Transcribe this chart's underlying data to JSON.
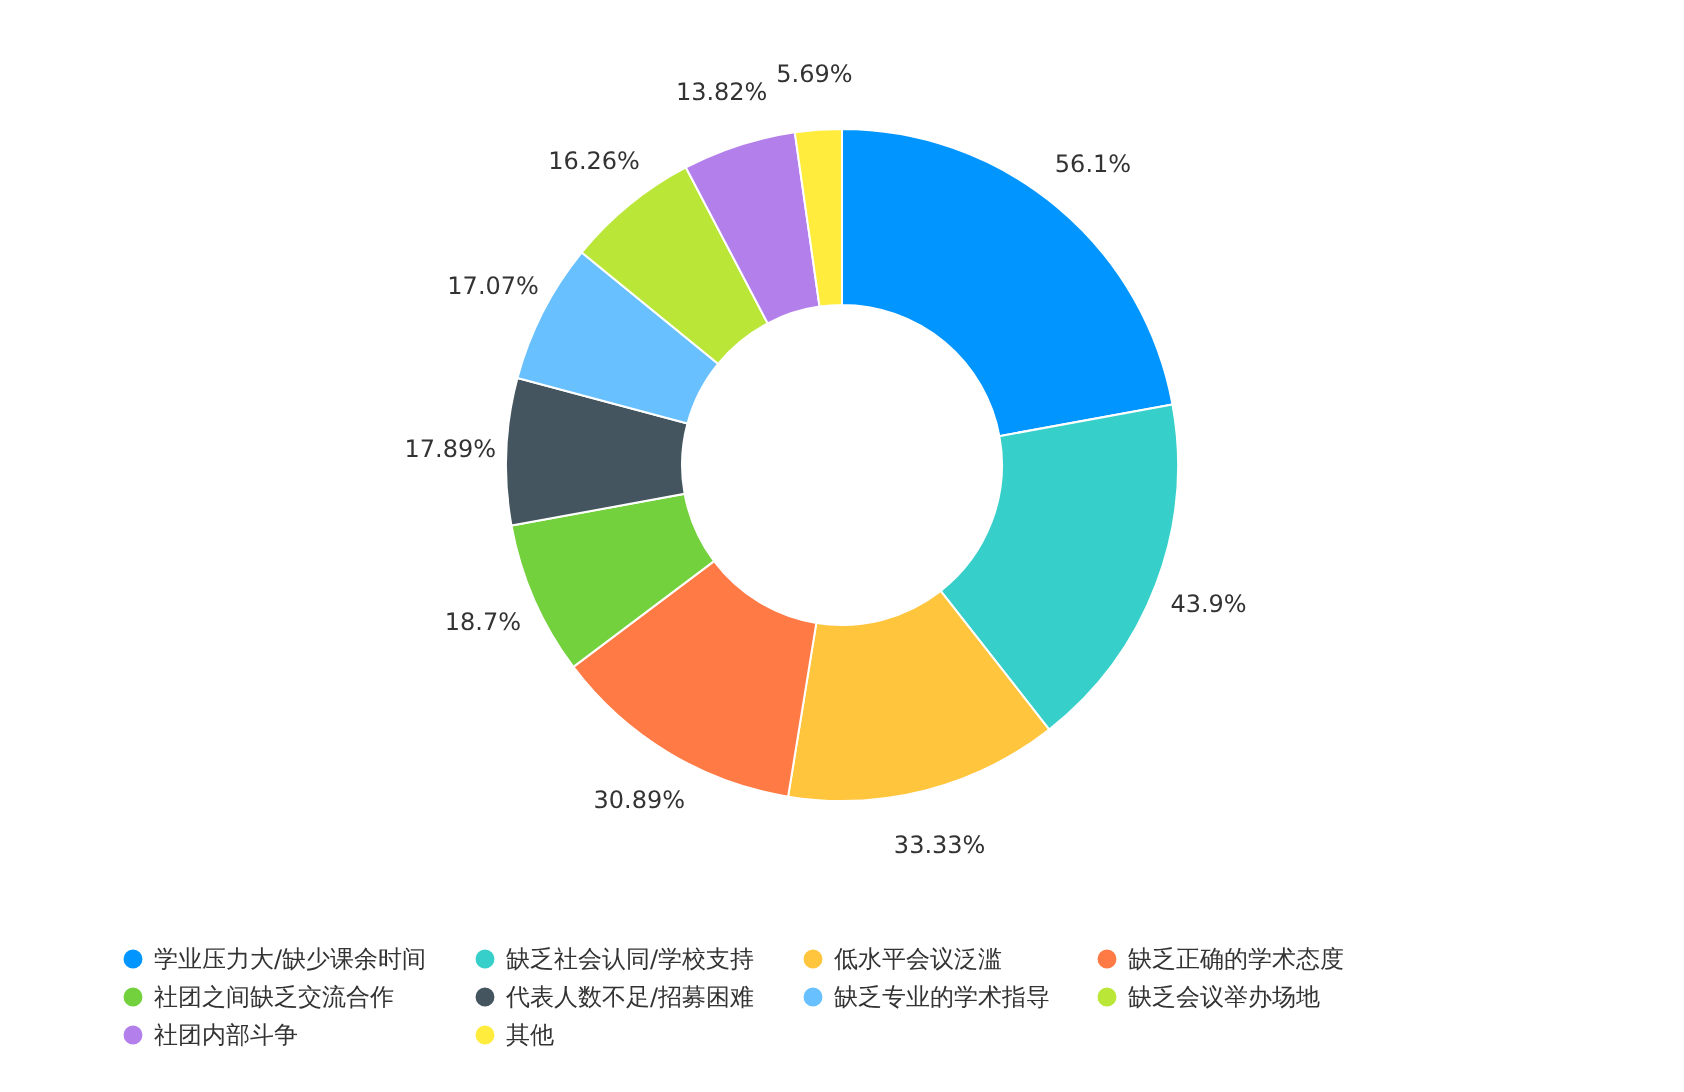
{
  "chart_data": {
    "type": "donut",
    "categories": [
      "学业压力大/缺少课余时间",
      "缺乏社会认同/学校支持",
      "低水平会议泛滥",
      "缺乏正确的学术态度",
      "社团之间缺乏交流合作",
      "代表人数不足/招募困难",
      "缺乏专业的学术指导",
      "缺乏会议举办场地",
      "社团内部斗争",
      "其他"
    ],
    "values": [
      56.1,
      43.9,
      33.33,
      30.89,
      18.7,
      17.89,
      17.07,
      16.26,
      13.82,
      5.69
    ],
    "value_labels": [
      "56.1%",
      "43.9%",
      "33.33%",
      "30.89%",
      "18.7%",
      "17.89%",
      "17.07%",
      "16.26%",
      "13.82%",
      "5.69%"
    ],
    "colors": [
      "#0095ff",
      "#36cfc9",
      "#ffc53d",
      "#ff7a45",
      "#73d13d",
      "#44555f",
      "#69c0ff",
      "#bae637",
      "#b37feb",
      "#ffec3d"
    ],
    "legend": "bottom"
  }
}
